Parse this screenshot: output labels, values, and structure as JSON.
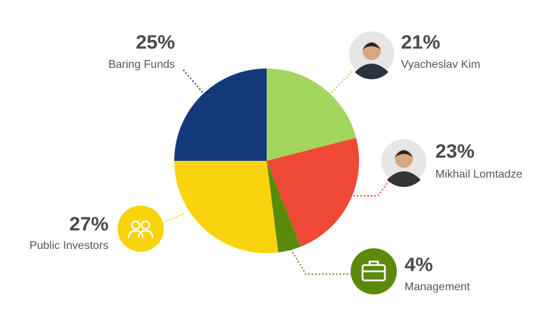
{
  "chart_data": {
    "type": "pie",
    "categories": [
      "Vyacheslav Kim",
      "Mikhail Lomtadze",
      "Management",
      "Public Investors",
      "Baring Funds"
    ],
    "values": [
      21,
      23,
      4,
      27,
      25
    ],
    "value_labels": [
      "21%",
      "23%",
      "4%",
      "27%",
      "25%"
    ],
    "colors": [
      "#a3d65c",
      "#ef4836",
      "#5a8a0a",
      "#f9d30e",
      "#13397a"
    ]
  }
}
